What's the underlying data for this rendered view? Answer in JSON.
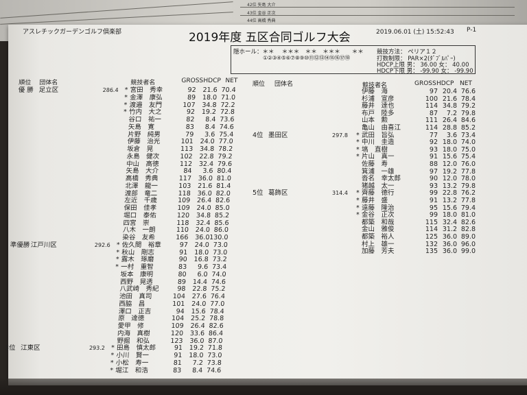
{
  "background_sheet": {
    "rows": [
      "42位 矢島 大介",
      "43位 金谷 正次",
      "44位 高橋 秀典"
    ]
  },
  "header": {
    "club": "アスレチックガーデンゴルフ倶楽部",
    "title": "2019年度 五区合同ゴルフ大会",
    "datetime": "2019.06.01 (土) 15:52:43",
    "page": "P-1"
  },
  "info": {
    "hidden_holes": "隠ホール：＊＊　 ＊＊＊　＊＊　＊＊＊　　＊＊",
    "hole_numbers": "①②③④⑤⑥⑦⑧⑨⑩⑪⑫⑬⑭⑮⑯⑰⑱",
    "method": "競技方法：  ペリア１２",
    "stroke_limit": "打数制限：  PAR×2(ﾀﾞﾌﾞﾙﾊﾟｰ)",
    "hdcp_upper": "HDCP上限  男：  36.00  女：  40.00",
    "hdcp_lower": "HDCP下限  男： -99.90  女： -99.90"
  },
  "columns": {
    "rank": "順位",
    "team": "団体名",
    "player": "競技者名",
    "gross": "GROSS",
    "hdcp": "HDCP",
    "net": "NET"
  },
  "teams": [
    {
      "rank": "優 勝",
      "name": "足立区",
      "score": "286.4",
      "members": [
        {
          "mark": "*",
          "name": "宮田　秀幸",
          "gross": "92",
          "hdcp": "21.6",
          "net": "70.4"
        },
        {
          "mark": "*",
          "name": "金澤　康弘",
          "gross": "89",
          "hdcp": "18.0",
          "net": "71.0"
        },
        {
          "mark": "*",
          "name": "渡邉　友門",
          "gross": "107",
          "hdcp": "34.8",
          "net": "72.2"
        },
        {
          "mark": "*",
          "name": "竹内　大之",
          "gross": "92",
          "hdcp": "19.2",
          "net": "72.8"
        },
        {
          "mark": "",
          "name": "谷口　祐一",
          "gross": "82",
          "hdcp": "8.4",
          "net": "73.6"
        },
        {
          "mark": "",
          "name": "矢島　寛",
          "gross": "83",
          "hdcp": "8.4",
          "net": "74.6"
        },
        {
          "mark": "",
          "name": "片野　純男",
          "gross": "79",
          "hdcp": "3.6",
          "net": "75.4"
        },
        {
          "mark": "",
          "name": "伊藤　治光",
          "gross": "101",
          "hdcp": "24.0",
          "net": "77.0"
        },
        {
          "mark": "",
          "name": "坂倉　晃",
          "gross": "113",
          "hdcp": "34.8",
          "net": "78.2"
        },
        {
          "mark": "",
          "name": "永島　健次",
          "gross": "102",
          "hdcp": "22.8",
          "net": "79.2"
        },
        {
          "mark": "",
          "name": "中山　高徳",
          "gross": "112",
          "hdcp": "32.4",
          "net": "79.6"
        },
        {
          "mark": "",
          "name": "矢島　大介",
          "gross": "84",
          "hdcp": "3.6",
          "net": "80.4"
        },
        {
          "mark": "",
          "name": "高橋　秀典",
          "gross": "117",
          "hdcp": "36.0",
          "net": "81.0"
        },
        {
          "mark": "",
          "name": "北澤　龍一",
          "gross": "103",
          "hdcp": "21.6",
          "net": "81.4"
        },
        {
          "mark": "",
          "name": "渡部　竜二",
          "gross": "118",
          "hdcp": "36.0",
          "net": "82.0"
        },
        {
          "mark": "",
          "name": "左近　千歳",
          "gross": "109",
          "hdcp": "26.4",
          "net": "82.6"
        },
        {
          "mark": "",
          "name": "保田　佳孝",
          "gross": "109",
          "hdcp": "24.0",
          "net": "85.0"
        },
        {
          "mark": "",
          "name": "堀口　泰佑",
          "gross": "120",
          "hdcp": "34.8",
          "net": "85.2"
        },
        {
          "mark": "",
          "name": "四宮　崇",
          "gross": "118",
          "hdcp": "32.4",
          "net": "85.6"
        },
        {
          "mark": "",
          "name": "八木　一朗",
          "gross": "110",
          "hdcp": "24.0",
          "net": "86.0"
        },
        {
          "mark": "",
          "name": "染谷　友希",
          "gross": "166",
          "hdcp": "36.0",
          "net": "130.0"
        }
      ]
    },
    {
      "rank": "準優勝",
      "name": "江戸川区",
      "score": "292.6",
      "members": [
        {
          "mark": "*",
          "name": "佐久間　裕章",
          "gross": "97",
          "hdcp": "24.0",
          "net": "73.0"
        },
        {
          "mark": "*",
          "name": "秋山　剛志",
          "gross": "91",
          "hdcp": "18.0",
          "net": "73.0"
        },
        {
          "mark": "*",
          "name": "露木　琢磨",
          "gross": "90",
          "hdcp": "16.8",
          "net": "73.2"
        },
        {
          "mark": "*",
          "name": "一村　重智",
          "gross": "83",
          "hdcp": "9.6",
          "net": "73.4"
        },
        {
          "mark": "",
          "name": "坂本　康明",
          "gross": "80",
          "hdcp": "6.0",
          "net": "74.0"
        },
        {
          "mark": "",
          "name": "西野　晃透",
          "gross": "89",
          "hdcp": "14.4",
          "net": "74.6"
        },
        {
          "mark": "",
          "name": "八武崎　秀紀",
          "gross": "98",
          "hdcp": "22.8",
          "net": "75.2"
        },
        {
          "mark": "",
          "name": "池田　真司",
          "gross": "104",
          "hdcp": "27.6",
          "net": "76.4"
        },
        {
          "mark": "",
          "name": "西脇　昌",
          "gross": "101",
          "hdcp": "24.0",
          "net": "77.0"
        },
        {
          "mark": "",
          "name": "澤口　正吉",
          "gross": "94",
          "hdcp": "15.6",
          "net": "78.4"
        },
        {
          "mark": "",
          "name": "原　達徳",
          "gross": "104",
          "hdcp": "25.2",
          "net": "78.8"
        },
        {
          "mark": "",
          "name": "愛甲　修",
          "gross": "109",
          "hdcp": "26.4",
          "net": "82.6"
        },
        {
          "mark": "",
          "name": "内海　真樹",
          "gross": "120",
          "hdcp": "33.6",
          "net": "86.4"
        },
        {
          "mark": "",
          "name": "野掘　和弘",
          "gross": "123",
          "hdcp": "36.0",
          "net": "87.0"
        }
      ]
    },
    {
      "rank": "3位",
      "name": "江東区",
      "score": "293.2",
      "members": [
        {
          "mark": "*",
          "name": "田島　慎太郎",
          "gross": "91",
          "hdcp": "19.2",
          "net": "71.8"
        },
        {
          "mark": "*",
          "name": "小川　賢一",
          "gross": "91",
          "hdcp": "18.0",
          "net": "73.0"
        },
        {
          "mark": "*",
          "name": "小松　寿一",
          "gross": "81",
          "hdcp": "7.2",
          "net": "73.8"
        },
        {
          "mark": "*",
          "name": "堀江　和浩",
          "gross": "83",
          "hdcp": "8.4",
          "net": "74.6"
        },
        {
          "mark": "",
          "name": "伊藤　海",
          "gross": "97",
          "hdcp": "20.4",
          "net": "76.6"
        },
        {
          "mark": "",
          "name": "杉浦　宣彦",
          "gross": "100",
          "hdcp": "21.6",
          "net": "78.4"
        },
        {
          "mark": "",
          "name": "藤井　達也",
          "gross": "114",
          "hdcp": "34.8",
          "net": "79.2"
        },
        {
          "mark": "",
          "name": "布戸　陸多",
          "gross": "87",
          "hdcp": "7.2",
          "net": "79.8"
        },
        {
          "mark": "",
          "name": "山本　勲",
          "gross": "111",
          "hdcp": "26.4",
          "net": "84.6"
        },
        {
          "mark": "",
          "name": "亀山　由喜江",
          "gross": "114",
          "hdcp": "28.8",
          "net": "85.2"
        }
      ]
    },
    {
      "rank": "4位",
      "name": "墨田区",
      "score": "297.8",
      "members": [
        {
          "mark": "*",
          "name": "武田　旨弘",
          "gross": "77",
          "hdcp": "3.6",
          "net": "73.4"
        },
        {
          "mark": "*",
          "name": "中川　圭造",
          "gross": "92",
          "hdcp": "18.0",
          "net": "74.0"
        },
        {
          "mark": "*",
          "name": "塙　直樹",
          "gross": "93",
          "hdcp": "18.0",
          "net": "75.0"
        },
        {
          "mark": "*",
          "name": "片山　真一",
          "gross": "91",
          "hdcp": "15.6",
          "net": "75.4"
        },
        {
          "mark": "",
          "name": "佐藤　寿",
          "gross": "88",
          "hdcp": "12.0",
          "net": "76.0"
        },
        {
          "mark": "",
          "name": "箕浦　一雄",
          "gross": "97",
          "hdcp": "19.2",
          "net": "77.8"
        },
        {
          "mark": "",
          "name": "沓名　幸太郎",
          "gross": "90",
          "hdcp": "12.0",
          "net": "78.0"
        },
        {
          "mark": "",
          "name": "猪越　太一",
          "gross": "93",
          "hdcp": "13.2",
          "net": "79.8"
        }
      ]
    },
    {
      "rank": "5位",
      "name": "葛飾区",
      "score": "314.4",
      "members": [
        {
          "mark": "*",
          "name": "齊藤　徳行",
          "gross": "99",
          "hdcp": "22.8",
          "net": "76.2"
        },
        {
          "mark": "*",
          "name": "藤井　盛",
          "gross": "91",
          "hdcp": "13.2",
          "net": "77.8"
        },
        {
          "mark": "*",
          "name": "遠藤　隆治",
          "gross": "95",
          "hdcp": "15.6",
          "net": "79.4"
        },
        {
          "mark": "*",
          "name": "金谷　正次",
          "gross": "99",
          "hdcp": "18.0",
          "net": "81.0"
        },
        {
          "mark": "",
          "name": "都築　和哉",
          "gross": "115",
          "hdcp": "32.4",
          "net": "82.6"
        },
        {
          "mark": "",
          "name": "金山　雅俊",
          "gross": "114",
          "hdcp": "31.2",
          "net": "82.8"
        },
        {
          "mark": "",
          "name": "都築　裕人",
          "gross": "125",
          "hdcp": "36.0",
          "net": "89.0"
        },
        {
          "mark": "",
          "name": "村上　雄一",
          "gross": "132",
          "hdcp": "36.0",
          "net": "96.0"
        },
        {
          "mark": "",
          "name": "加藤　芳夫",
          "gross": "135",
          "hdcp": "36.0",
          "net": "99.0"
        }
      ]
    }
  ]
}
